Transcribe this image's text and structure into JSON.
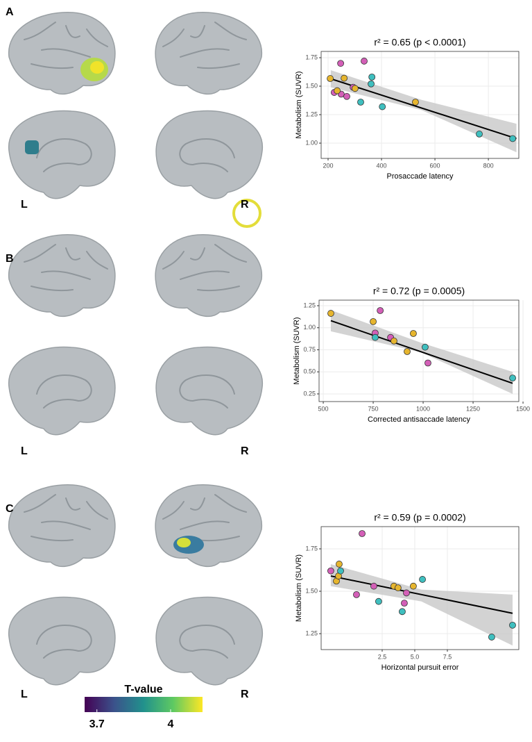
{
  "panels": [
    {
      "label": "A",
      "left": "L",
      "right": "R"
    },
    {
      "label": "B",
      "left": "L",
      "right": "R"
    },
    {
      "label": "C",
      "left": "L",
      "right": "R"
    }
  ],
  "colorbar": {
    "title": "T-value",
    "lim": [
      3.65,
      4.13
    ],
    "ticks": [
      3.7,
      4
    ]
  },
  "chart_data": [
    {
      "type": "scatter",
      "title": "r² = 0.65 (p < 0.0001)",
      "x_label": "Prosaccade latency",
      "y_label": "Metabolism (SUVR)",
      "xlim": [
        174,
        914
      ],
      "ylim": [
        0.866,
        1.805
      ],
      "xticks": [
        200,
        400,
        600,
        800
      ],
      "yticks": [
        {
          "value": 1,
          "label": "1.00"
        },
        1.25,
        {
          "value": 1.5,
          "label": "1.50"
        },
        1.75
      ],
      "grid": true,
      "series": [
        {
          "color": "#d35fb7",
          "x": [
            247,
            223,
            249,
            270,
            294,
            335
          ],
          "values": [
            1.7,
            1.445,
            1.43,
            1.41,
            1.49,
            1.72
          ]
        },
        {
          "color": "#e6b52e",
          "x": [
            208,
            234,
            260,
            301,
            527
          ],
          "values": [
            1.567,
            1.46,
            1.57,
            1.48,
            1.36
          ]
        },
        {
          "color": "#3fbfbf",
          "x": [
            322,
            364,
            361,
            403,
            766,
            891
          ],
          "values": [
            1.36,
            1.58,
            1.52,
            1.32,
            1.08,
            1.04
          ]
        }
      ],
      "fit": {
        "color": "#000000",
        "x": [
          210,
          905
        ],
        "values": [
          1.565,
          1.04
        ]
      },
      "band": {
        "color": "#c8c8c8",
        "x": [
          210,
          550,
          905
        ],
        "lower": [
          1.49,
          1.29,
          0.92
        ],
        "upper": [
          1.64,
          1.38,
          1.17
        ]
      }
    },
    {
      "type": "scatter",
      "title": "r² = 0.72 (p = 0.0005)",
      "x_label": "Corrected antisaccade latency",
      "y_label": "Metabolism (SUVR)",
      "xlim": [
        479,
        1479
      ],
      "ylim": [
        0.163,
        1.313
      ],
      "xticks": [
        500,
        750,
        1000,
        1250,
        1500
      ],
      "yticks": [
        0.25,
        {
          "value": 0.5,
          "label": "0.50"
        },
        0.75,
        {
          "value": 1,
          "label": "1.00"
        },
        1.25
      ],
      "grid": true,
      "series": [
        {
          "color": "#d35fb7",
          "x": [
            785,
            760,
            837,
            1024
          ],
          "values": [
            1.195,
            0.94,
            0.89,
            0.6
          ]
        },
        {
          "color": "#e6b52e",
          "x": [
            538,
            750,
            854,
            951,
            920
          ],
          "values": [
            1.163,
            1.07,
            0.85,
            0.935,
            0.73
          ]
        },
        {
          "color": "#3fbfbf",
          "x": [
            760,
            1010,
            1448
          ],
          "values": [
            0.89,
            0.78,
            0.43
          ]
        }
      ],
      "fit": {
        "color": "#000000",
        "x": [
          538,
          1448
        ],
        "values": [
          1.08,
          0.37
        ]
      },
      "band": {
        "color": "#c8c8c8",
        "x": [
          538,
          990,
          1448
        ],
        "lower": [
          0.96,
          0.72,
          0.25
        ],
        "upper": [
          1.2,
          0.83,
          0.5
        ]
      }
    },
    {
      "type": "scatter",
      "title": "r² = 0.59 (p = 0.0002)",
      "x_label": "Horizontal pursuit error",
      "y_label": "Metabolism (SUVR)",
      "xlim": [
        -2.18,
        12.98
      ],
      "ylim": [
        1.156,
        1.881
      ],
      "xticks": [
        2.5,
        {
          "value": 5,
          "label": "5.0"
        },
        7.5
      ],
      "yticks": [
        1.25,
        {
          "value": 1.5,
          "label": "1.50"
        },
        1.75
      ],
      "grid": true,
      "series": [
        {
          "color": "#d35fb7",
          "x": [
            -1.44,
            0.96,
            0.53,
            1.86,
            4.2,
            4.36
          ],
          "values": [
            1.62,
            1.84,
            1.48,
            1.53,
            1.43,
            1.49
          ]
        },
        {
          "color": "#e6b52e",
          "x": [
            -1.01,
            -0.85,
            -0.8,
            3.4,
            3.72,
            4.89
          ],
          "values": [
            1.56,
            1.59,
            1.66,
            1.53,
            1.52,
            1.53
          ]
        },
        {
          "color": "#3fbfbf",
          "x": [
            -0.69,
            2.23,
            4.04,
            5.59,
            10.9,
            12.5
          ],
          "values": [
            1.62,
            1.44,
            1.38,
            1.57,
            1.23,
            1.3
          ]
        }
      ],
      "fit": {
        "color": "#000000",
        "x": [
          -1.44,
          12.5
        ],
        "values": [
          1.59,
          1.37
        ]
      },
      "band": {
        "color": "#c8c8c8",
        "x": [
          -1.44,
          5.5,
          12.5
        ],
        "lower": [
          1.53,
          1.44,
          1.18
        ],
        "upper": [
          1.66,
          1.51,
          1.48
        ]
      }
    }
  ]
}
